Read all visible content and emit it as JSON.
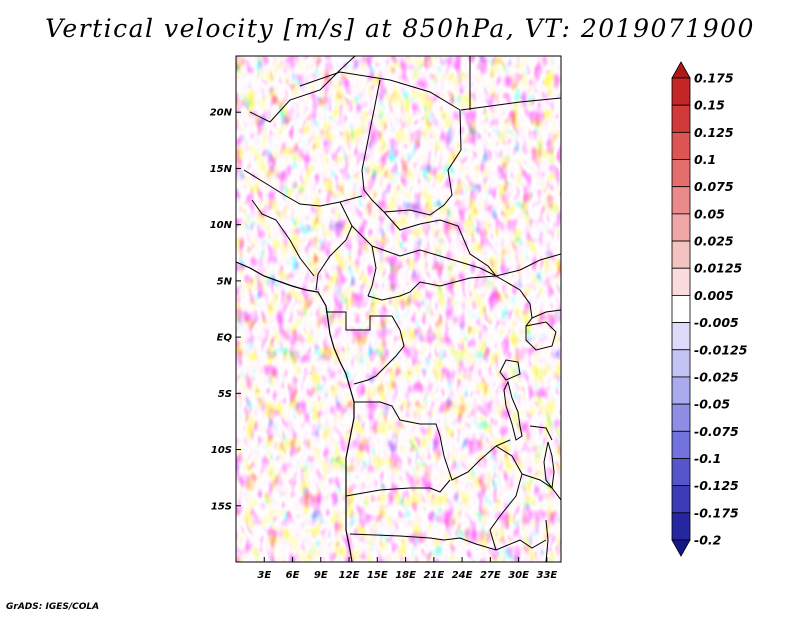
{
  "title": "Vertical velocity [m/s] at 850hPa, VT: 2019071900",
  "credit": "GrADS: IGES/COLA",
  "map": {
    "lat_labels": [
      "20N",
      "15N",
      "10N",
      "5N",
      "EQ",
      "5S",
      "10S",
      "15S"
    ],
    "lat_values": [
      20,
      15,
      10,
      5,
      0,
      -5,
      -10,
      -15
    ],
    "lon_labels": [
      "3E",
      "6E",
      "9E",
      "12E",
      "15E",
      "18E",
      "21E",
      "24E",
      "27E",
      "30E",
      "33E"
    ],
    "lon_values": [
      3,
      6,
      9,
      12,
      15,
      18,
      21,
      24,
      27,
      30,
      33
    ],
    "lon_range": [
      0,
      34.5
    ],
    "lat_range": [
      -20,
      25
    ]
  },
  "colorbar": {
    "labels": [
      "0.175",
      "0.15",
      "0.125",
      "0.1",
      "0.075",
      "0.05",
      "0.025",
      "0.0125",
      "0.005",
      "-0.005",
      "-0.0125",
      "-0.025",
      "-0.05",
      "-0.075",
      "-0.1",
      "-0.125",
      "-0.175",
      "-0.2"
    ],
    "colors": [
      "#b01818",
      "#c52626",
      "#d23a3a",
      "#dc5454",
      "#e46e6e",
      "#ea8a8a",
      "#f0a6a6",
      "#f5c2c2",
      "#fadcdc",
      "#ffffff",
      "#dcdcfa",
      "#c4c4f4",
      "#aaaaee",
      "#8e8ee6",
      "#7272dc",
      "#5656cc",
      "#3c3cb8",
      "#2626a0",
      "#16168a"
    ]
  }
}
